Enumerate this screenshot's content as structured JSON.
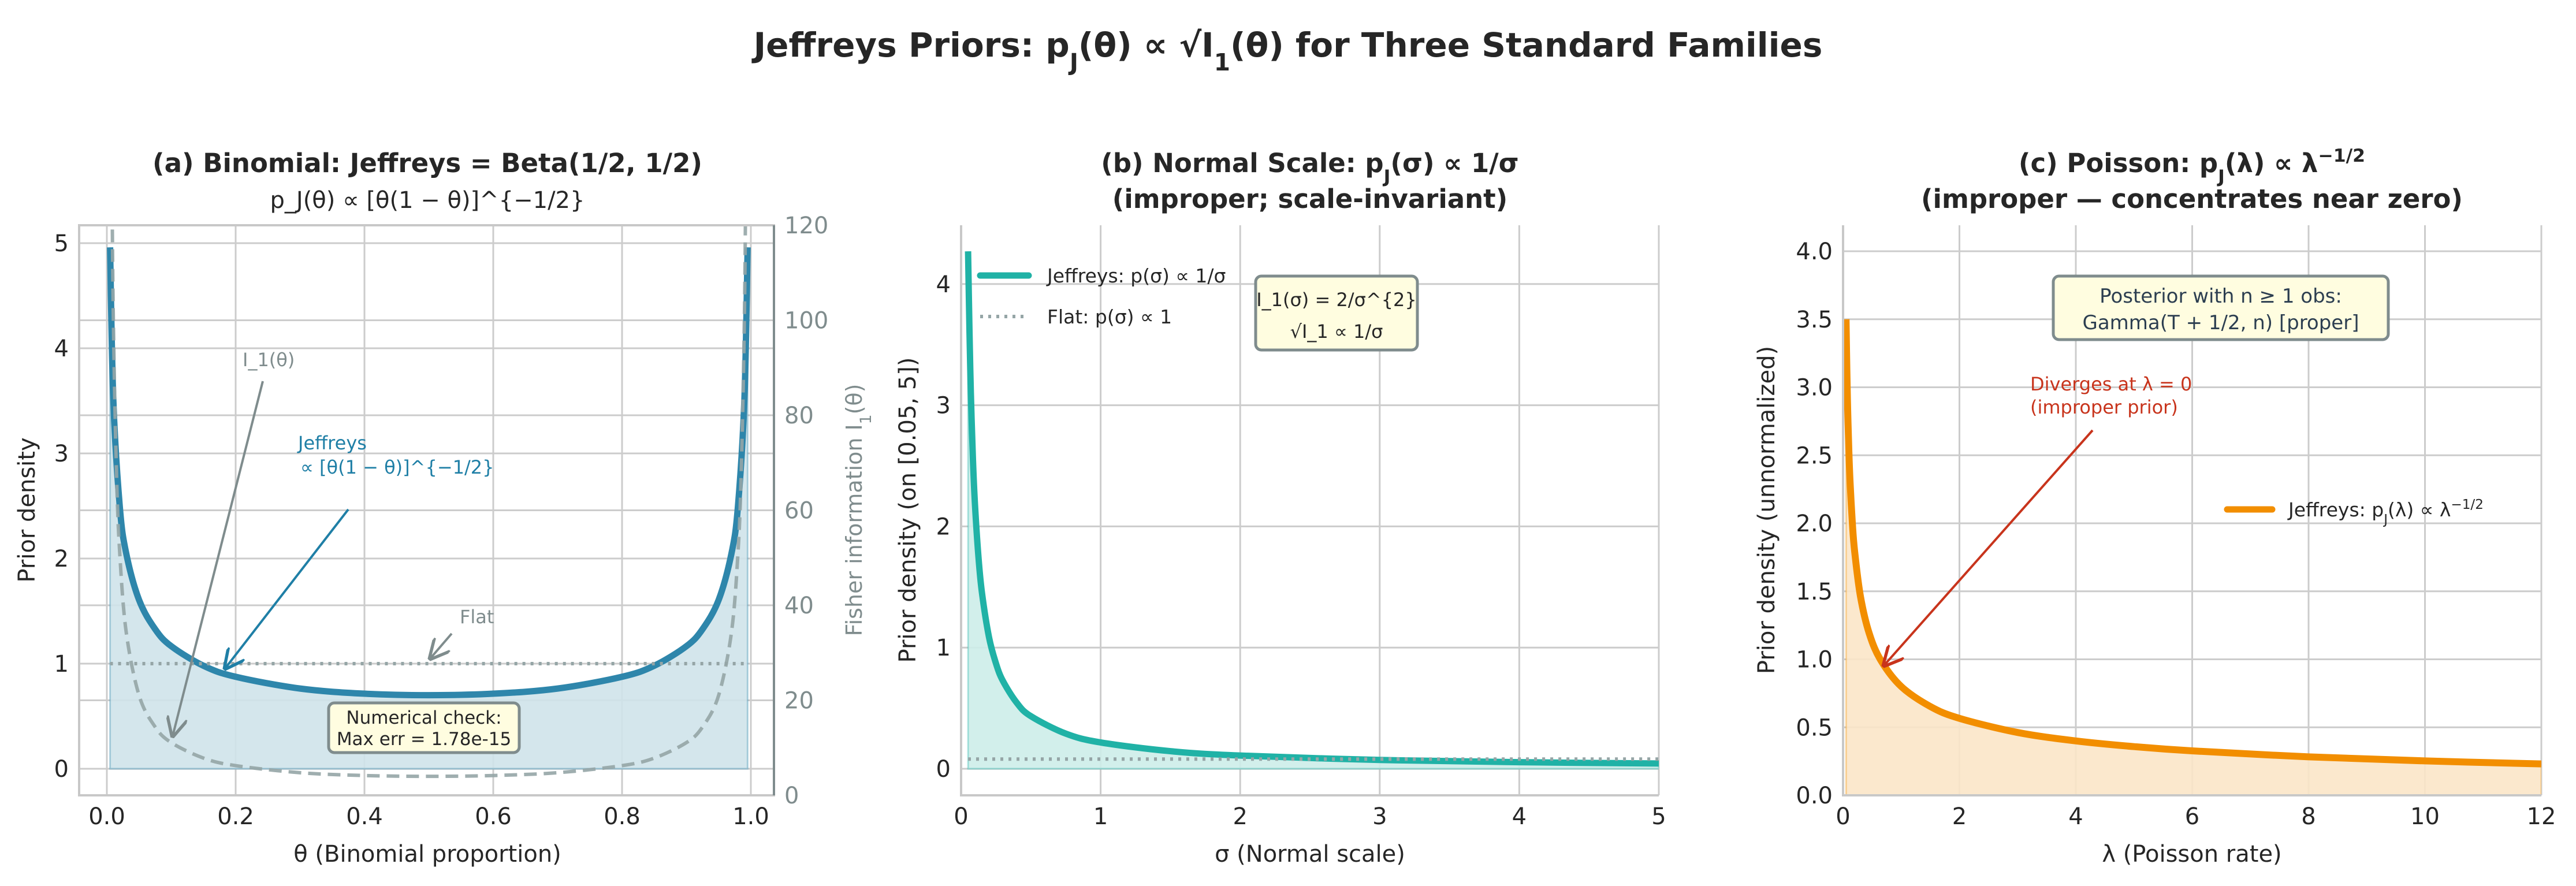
{
  "suptitle": "Jeffreys Priors: p_J(θ) ∝ √I_1(θ)  for Three Standard Families",
  "colors": {
    "binomial": "#2e86ab",
    "binomial_fill": "#cfe3ea",
    "fisher": "#95a5a6",
    "annot_grey": "#7f8c8d",
    "normal": "#20b2a6",
    "normal_fill": "#cdede9",
    "poisson": "#f28e00",
    "poisson_fill": "#fbe5c8",
    "red": "#c8341c",
    "box_fill": "#fffde0",
    "box_edge": "#7f8c8d"
  },
  "chart_data": [
    {
      "type": "line",
      "title": "(a) Binomial: Jeffreys  =  Beta(1/2, 1/2)",
      "subtitle": "p_J(θ) ∝ [θ(1 − θ)]^{−1/2}",
      "xlabel": "θ (Binomial proportion)",
      "ylabel": "Prior density",
      "ylabel_right": "Fisher information I_1(θ)",
      "xlim": [
        -0.04,
        1.04
      ],
      "ylim": [
        -0.25,
        5.17
      ],
      "ylim_right": [
        0,
        120
      ],
      "xticks": [
        "0.0",
        "0.2",
        "0.4",
        "0.6",
        "0.8",
        "1.0"
      ],
      "yticks": [
        "0",
        "1",
        "2",
        "3",
        "4",
        "5"
      ],
      "yticks_right": [
        "0",
        "20",
        "40",
        "60",
        "80",
        "100",
        "120"
      ],
      "grid": true,
      "series": [
        {
          "key": "jeffreys",
          "axis": "left",
          "style": "solid",
          "fill": true,
          "x": [
            0.005,
            0.01,
            0.02,
            0.03,
            0.05,
            0.075,
            0.1,
            0.15,
            0.2,
            0.3,
            0.4,
            0.5,
            0.6,
            0.7,
            0.8,
            0.85,
            0.9,
            0.925,
            0.95,
            0.97,
            0.98,
            0.99,
            0.995
          ],
          "y": [
            4.96,
            3.517,
            2.499,
            2.051,
            1.606,
            1.328,
            1.166,
            0.98,
            0.875,
            0.763,
            0.714,
            0.7,
            0.714,
            0.763,
            0.875,
            0.98,
            1.166,
            1.328,
            1.606,
            2.051,
            2.499,
            3.517,
            4.96
          ]
        },
        {
          "key": "fisher",
          "axis": "right",
          "style": "dashed",
          "x": [
            0.007,
            0.01,
            0.015,
            0.02,
            0.03,
            0.05,
            0.075,
            0.1,
            0.15,
            0.2,
            0.3,
            0.4,
            0.5,
            0.6,
            0.7,
            0.8,
            0.85,
            0.9,
            0.925,
            0.95,
            0.97,
            0.98,
            0.985,
            0.99,
            0.993
          ],
          "y": [
            143.9,
            101,
            67.7,
            51,
            34.4,
            21.05,
            14.4,
            11.1,
            7.84,
            6.25,
            4.76,
            4.17,
            4,
            4.17,
            4.76,
            6.25,
            7.84,
            11.1,
            14.4,
            21.05,
            34.4,
            51,
            67.7,
            101,
            143.9
          ]
        },
        {
          "key": "flat",
          "axis": "left",
          "style": "dotted",
          "x": [
            0.005,
            0.995
          ],
          "y": [
            1,
            1
          ]
        }
      ],
      "annotations": {
        "fisher_label": "I_1(θ)",
        "jeffreys_label_1": "Jeffreys",
        "jeffreys_label_2": "∝ [θ(1 − θ)]^{−1/2}",
        "flat_label": "Flat",
        "check_line_1": "Numerical check:",
        "check_line_2": "Max err = 1.78e-15"
      }
    },
    {
      "type": "line",
      "title": "(b) Normal Scale: p_J(σ) ∝ 1/σ",
      "subtitle": "(improper; scale-invariant)",
      "xlabel": "σ (Normal scale)",
      "ylabel": "Prior density (on [0.05, 5])",
      "xlim": [
        0,
        5
      ],
      "ylim": [
        -0.22,
        4.48
      ],
      "xticks": [
        "0",
        "1",
        "2",
        "3",
        "4",
        "5"
      ],
      "yticks": [
        "0",
        "1",
        "2",
        "3",
        "4"
      ],
      "grid": true,
      "legend": "top-left",
      "series": [
        {
          "key": "jeffreys",
          "name": "Jeffreys: p(σ) ∝ 1/σ",
          "style": "solid",
          "fill": true,
          "x": [
            0.05,
            0.06,
            0.07,
            0.085,
            0.1,
            0.125,
            0.15,
            0.2,
            0.25,
            0.3,
            0.4,
            0.5,
            0.75,
            1,
            1.5,
            2,
            3,
            4,
            5
          ],
          "y": [
            4.27,
            3.62,
            3.1,
            2.55,
            2.17,
            1.74,
            1.448,
            1.086,
            0.869,
            0.724,
            0.543,
            0.434,
            0.29,
            0.217,
            0.145,
            0.109,
            0.0724,
            0.0543,
            0.0434
          ]
        },
        {
          "key": "flat",
          "name": "Flat: p(σ) ∝ 1",
          "style": "dotted",
          "x": [
            0.05,
            5
          ],
          "y": [
            0.08,
            0.08
          ]
        }
      ],
      "annotations": {
        "box_line_1": "I_1(σ) = 2/σ^{2}",
        "box_line_2": "√I_1 ∝ 1/σ"
      }
    },
    {
      "type": "line",
      "title": "(c) Poisson: p_J(λ) ∝ λ^{−1/2}",
      "subtitle": "(improper — concentrates near zero)",
      "xlabel": "λ (Poisson rate)",
      "ylabel": "Prior density (unnormalized)",
      "xlim": [
        0,
        12
      ],
      "ylim": [
        0,
        4.2
      ],
      "xticks": [
        "0",
        "2",
        "4",
        "6",
        "8",
        "10",
        "12"
      ],
      "yticks": [
        "0.0",
        "0.5",
        "1.0",
        "1.5",
        "2.0",
        "2.5",
        "3.0",
        "3.5",
        "4.0"
      ],
      "grid": true,
      "legend": "center-right",
      "series": [
        {
          "key": "jeffreys",
          "name": "Jeffreys: p_J(λ) ∝ λ^{−1/2}",
          "style": "solid",
          "fill": true,
          "x": [
            0.052,
            0.065,
            0.08,
            0.1,
            0.12,
            0.16,
            0.2,
            0.3,
            0.45,
            0.65,
            1,
            1.5,
            2,
            3,
            4,
            5,
            6,
            8,
            10,
            12
          ],
          "y": [
            3.5,
            3.14,
            2.83,
            2.53,
            2.31,
            2.0,
            1.79,
            1.46,
            1.19,
            0.992,
            0.8,
            0.653,
            0.566,
            0.462,
            0.4,
            0.358,
            0.327,
            0.283,
            0.253,
            0.231
          ]
        }
      ],
      "annotations": {
        "box_line_1": "Posterior with n ≥ 1 obs:",
        "box_line_2": "Gamma(T + 1/2, n)  [proper]",
        "diverge_line_1": "Diverges at λ = 0",
        "diverge_line_2": "(improper prior)"
      }
    }
  ]
}
